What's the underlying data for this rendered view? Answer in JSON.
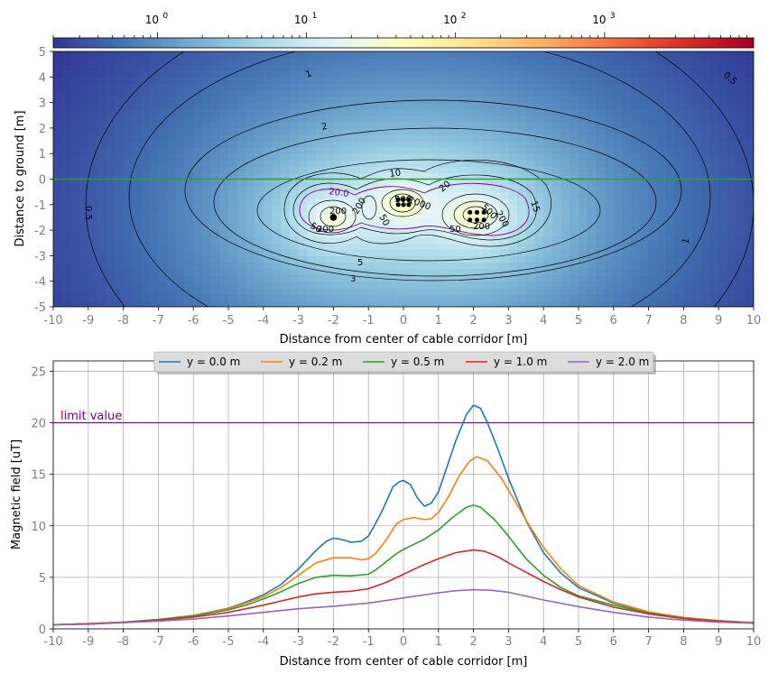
{
  "chart_data": [
    {
      "type": "heatmap",
      "title": "",
      "xlabel": "Distance from center of cable corridor [m]",
      "ylabel": "Distance to ground [m]",
      "xlim": [
        -10,
        10
      ],
      "ylim": [
        -5,
        5
      ],
      "x_ticks": [
        "-10",
        "-9",
        "-8",
        "-7",
        "-6",
        "-5",
        "-4",
        "-3",
        "-2",
        "-1",
        "0",
        "1",
        "2",
        "3",
        "4",
        "5",
        "6",
        "7",
        "8",
        "9",
        "10"
      ],
      "y_ticks": [
        "5",
        "4",
        "3",
        "2",
        "1",
        "0",
        "-1",
        "-2",
        "-3",
        "-4",
        "-5"
      ],
      "colorscale": "RdYlBu_r",
      "colorbar": {
        "scale": "log",
        "range": [
          0.2,
          10000
        ],
        "ticks": [
          {
            "base": "10",
            "exp": "0",
            "value": 1
          },
          {
            "base": "10",
            "exp": "1",
            "value": 10
          },
          {
            "base": "10",
            "exp": "2",
            "value": 100
          },
          {
            "base": "10",
            "exp": "3",
            "value": 1000
          }
        ]
      },
      "ground_line": {
        "y": 0,
        "color": "#2ca02c"
      },
      "cable_groups": [
        {
          "x": -2.0,
          "y": -1.5,
          "cables": [
            [
              -2.0,
              -1.5
            ]
          ]
        },
        {
          "x": 0.0,
          "y": -0.95,
          "cables": [
            [
              -0.15,
              -0.8
            ],
            [
              0.0,
              -0.8
            ],
            [
              0.15,
              -0.8
            ],
            [
              -0.15,
              -1.0
            ],
            [
              0.0,
              -1.0
            ],
            [
              0.15,
              -1.0
            ]
          ]
        },
        {
          "x": 2.0,
          "y": -1.45,
          "cables": [
            [
              1.9,
              -1.3
            ],
            [
              2.1,
              -1.3
            ],
            [
              2.3,
              -1.3
            ],
            [
              1.9,
              -1.6
            ],
            [
              2.1,
              -1.6
            ],
            [
              2.3,
              -1.6
            ]
          ]
        }
      ],
      "contour_labels": [
        "0.5",
        "1",
        "2",
        "3",
        "5",
        "10",
        "15",
        "20",
        "20.0",
        "50",
        "200",
        "500",
        "1000"
      ]
    },
    {
      "type": "line",
      "title": "",
      "xlabel": "Distance from center of cable corridor [m]",
      "ylabel": "Magnetic field [uT]",
      "xlim": [
        -10,
        10
      ],
      "ylim": [
        0,
        26
      ],
      "x_ticks": [
        "-10",
        "-9",
        "-8",
        "-7",
        "-6",
        "-5",
        "-4",
        "-3",
        "-2",
        "-1",
        "0",
        "1",
        "2",
        "3",
        "4",
        "5",
        "6",
        "7",
        "8",
        "9",
        "10"
      ],
      "y_ticks": [
        "0",
        "5",
        "10",
        "15",
        "20",
        "25"
      ],
      "grid": true,
      "legend_position": "top-center",
      "limit": {
        "label": "limit value",
        "value": 20,
        "color": "#800080"
      },
      "series": [
        {
          "name": "y = 0.0 m",
          "color": "#1f77b4",
          "x": [
            -10,
            -9,
            -8,
            -7,
            -6,
            -5,
            -4.5,
            -4,
            -3.5,
            -3,
            -2.5,
            -2.2,
            -2,
            -1.8,
            -1.5,
            -1.2,
            -1,
            -0.8,
            -0.6,
            -0.3,
            -0.1,
            0,
            0.2,
            0.4,
            0.6,
            0.8,
            1,
            1.2,
            1.5,
            1.8,
            2,
            2.2,
            2.4,
            2.7,
            3,
            3.5,
            4,
            4.5,
            5,
            6,
            7,
            8,
            9,
            10
          ],
          "values": [
            0.4,
            0.5,
            0.65,
            0.9,
            1.3,
            2.0,
            2.6,
            3.3,
            4.3,
            5.8,
            7.6,
            8.5,
            8.8,
            8.7,
            8.4,
            8.5,
            9.0,
            10.2,
            11.5,
            13.8,
            14.3,
            14.4,
            14.0,
            12.7,
            11.9,
            12.2,
            13.3,
            15.3,
            18.3,
            20.8,
            21.7,
            21.4,
            20.0,
            17.4,
            14.6,
            10.5,
            7.4,
            5.4,
            4.0,
            2.5,
            1.6,
            1.1,
            0.8,
            0.6
          ]
        },
        {
          "name": "y = 0.2 m",
          "color": "#ff7f0e",
          "x": [
            -10,
            -9,
            -8,
            -7,
            -6,
            -5,
            -4.5,
            -4,
            -3.5,
            -3,
            -2.5,
            -2,
            -1.5,
            -1.2,
            -1,
            -0.8,
            -0.5,
            -0.2,
            0,
            0.3,
            0.6,
            0.8,
            1,
            1.3,
            1.6,
            1.9,
            2.1,
            2.4,
            2.8,
            3.2,
            3.6,
            4,
            4.5,
            5,
            6,
            7,
            8,
            9,
            10
          ],
          "values": [
            0.4,
            0.5,
            0.65,
            0.9,
            1.3,
            1.95,
            2.5,
            3.1,
            4.0,
            5.2,
            6.4,
            6.9,
            6.9,
            6.7,
            6.8,
            7.3,
            8.6,
            10.2,
            10.6,
            10.8,
            10.6,
            10.7,
            11.3,
            12.9,
            14.9,
            16.3,
            16.7,
            16.3,
            14.6,
            12.3,
            10.0,
            7.9,
            5.8,
            4.2,
            2.6,
            1.65,
            1.1,
            0.8,
            0.6
          ]
        },
        {
          "name": "y = 0.5 m",
          "color": "#2ca02c",
          "x": [
            -10,
            -9,
            -8,
            -7,
            -6,
            -5,
            -4.5,
            -4,
            -3.5,
            -3,
            -2.5,
            -2,
            -1.5,
            -1,
            -0.8,
            -0.5,
            -0.2,
            0,
            0.3,
            0.6,
            1,
            1.4,
            1.8,
            2,
            2.2,
            2.6,
            3,
            3.5,
            4,
            4.5,
            5,
            6,
            7,
            8,
            9,
            10
          ],
          "values": [
            0.4,
            0.5,
            0.65,
            0.9,
            1.25,
            1.85,
            2.3,
            2.9,
            3.6,
            4.4,
            5.0,
            5.2,
            5.15,
            5.3,
            5.7,
            6.5,
            7.3,
            7.7,
            8.2,
            8.7,
            9.6,
            10.8,
            11.8,
            12.0,
            11.8,
            10.6,
            9.0,
            6.8,
            5.2,
            4.0,
            3.2,
            2.3,
            1.55,
            1.05,
            0.75,
            0.55
          ]
        },
        {
          "name": "y = 1.0 m",
          "color": "#d62728",
          "x": [
            -10,
            -9,
            -8,
            -7,
            -6,
            -5,
            -4,
            -3,
            -2.5,
            -2,
            -1.5,
            -1,
            -0.5,
            0,
            0.5,
            1,
            1.5,
            2,
            2.3,
            2.7,
            3,
            3.5,
            4,
            4.5,
            5,
            6,
            7,
            8,
            9,
            10
          ],
          "values": [
            0.4,
            0.5,
            0.6,
            0.85,
            1.15,
            1.6,
            2.3,
            3.1,
            3.4,
            3.55,
            3.65,
            3.9,
            4.5,
            5.3,
            6.1,
            6.8,
            7.4,
            7.65,
            7.55,
            7.0,
            6.4,
            5.5,
            4.6,
            3.8,
            3.1,
            2.1,
            1.45,
            1.0,
            0.75,
            0.55
          ]
        },
        {
          "name": "y = 2.0 m",
          "color": "#9467bd",
          "x": [
            -10,
            -9,
            -8,
            -7,
            -6,
            -5,
            -4,
            -3,
            -2,
            -1,
            0,
            1,
            1.5,
            2,
            2.5,
            3,
            4,
            5,
            6,
            7,
            8,
            9,
            10
          ],
          "values": [
            0.4,
            0.45,
            0.6,
            0.75,
            0.95,
            1.25,
            1.6,
            1.95,
            2.2,
            2.5,
            3.0,
            3.5,
            3.7,
            3.8,
            3.75,
            3.55,
            2.8,
            2.15,
            1.6,
            1.15,
            0.85,
            0.65,
            0.55
          ]
        }
      ]
    }
  ]
}
